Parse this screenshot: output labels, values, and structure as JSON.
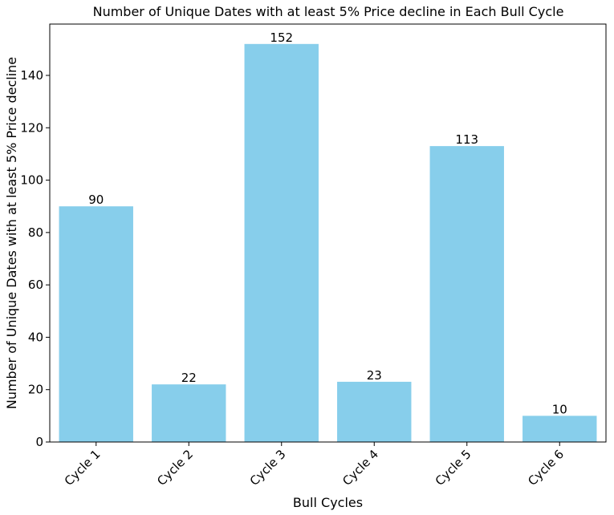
{
  "chart_data": {
    "type": "bar",
    "title": "Number of Unique Dates with at least 5% Price decline in Each Bull Cycle",
    "xlabel": "Bull Cycles",
    "ylabel": "Number of Unique Dates with at least 5% Price decline",
    "categories": [
      "Cycle 1",
      "Cycle 2",
      "Cycle 3",
      "Cycle 4",
      "Cycle 5",
      "Cycle 6"
    ],
    "values": [
      90,
      22,
      152,
      23,
      113,
      10
    ],
    "data_labels": [
      "90",
      "22",
      "152",
      "23",
      "113",
      "10"
    ],
    "ylim": [
      0,
      159.6
    ],
    "yticks": [
      0,
      20,
      40,
      60,
      80,
      100,
      120,
      140
    ],
    "ytick_labels": [
      "0",
      "20",
      "40",
      "60",
      "80",
      "100",
      "120",
      "140"
    ],
    "grid": false,
    "legend": "none",
    "bar_color": "#87CEEB"
  }
}
